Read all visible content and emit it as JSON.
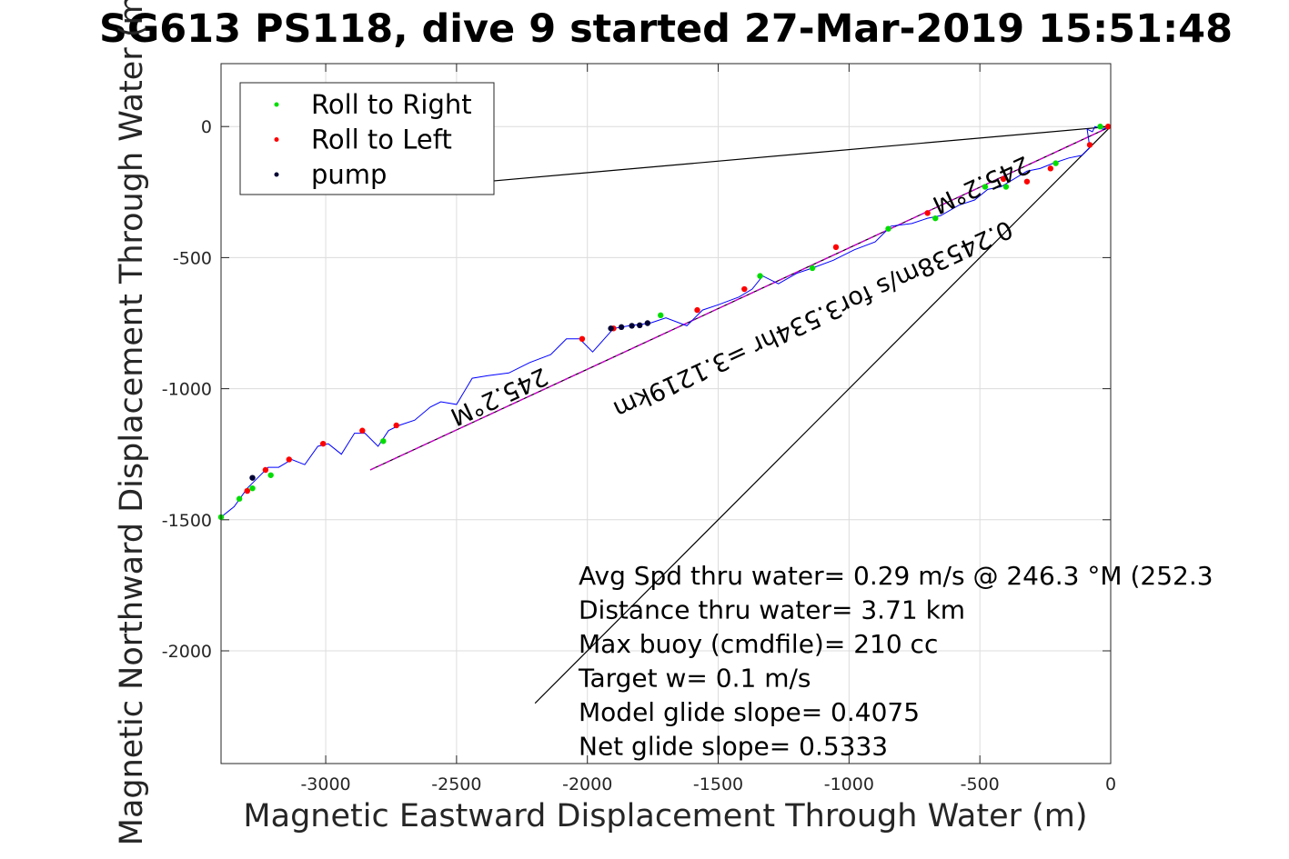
{
  "title": "SG613 PS118, dive 9 started 27-Mar-2019 15:51:48",
  "chart_data": {
    "type": "scatter",
    "xlabel": "Magnetic Eastward Displacement Through Water (m)",
    "ylabel": "Magnetic Northward Displacement Through Water (m)",
    "xlim": [
      -3400,
      0
    ],
    "ylim": [
      -2430,
      240
    ],
    "xticks": [
      -3000,
      -2500,
      -2000,
      -1500,
      -1000,
      -500,
      0
    ],
    "yticks": [
      0,
      -500,
      -1000,
      -1500,
      -2000
    ],
    "grid": true,
    "legend_position": "top-left",
    "series": [
      {
        "name": "Roll to Right",
        "color": "#00dd00",
        "marker": "dot",
        "x": [
          -3400,
          -3330,
          -3280,
          -3210,
          -2780,
          -1720,
          -1340,
          -1140,
          -850,
          -670,
          -480,
          -400,
          -210,
          -40
        ],
        "y": [
          -1490,
          -1420,
          -1380,
          -1330,
          -1200,
          -720,
          -570,
          -540,
          -390,
          -350,
          -230,
          -230,
          -140,
          0
        ]
      },
      {
        "name": "Roll to Left",
        "color": "#ff0000",
        "marker": "dot",
        "x": [
          -3300,
          -3230,
          -3140,
          -3010,
          -2860,
          -2730,
          -2020,
          -1900,
          -1580,
          -1400,
          -1050,
          -700,
          -410,
          -320,
          -230,
          -80,
          -10
        ],
        "y": [
          -1390,
          -1310,
          -1270,
          -1210,
          -1160,
          -1140,
          -810,
          -770,
          -700,
          -620,
          -460,
          -330,
          -200,
          -210,
          -160,
          -70,
          0
        ]
      },
      {
        "name": "pump",
        "color": "#000033",
        "marker": "dot",
        "x": [
          -3280,
          -1910,
          -1870,
          -1830,
          -1800,
          -1770
        ],
        "y": [
          -1340,
          -770,
          -765,
          -760,
          -758,
          -750
        ]
      }
    ],
    "track": {
      "color": "#0000ff",
      "x": [
        -3400,
        -3350,
        -3300,
        -3260,
        -3220,
        -3180,
        -3130,
        -3080,
        -3030,
        -2990,
        -2940,
        -2890,
        -2850,
        -2800,
        -2760,
        -2720,
        -2660,
        -2600,
        -2560,
        -2500,
        -2440,
        -2380,
        -2300,
        -2220,
        -2140,
        -2080,
        -2030,
        -1980,
        -1900,
        -1840,
        -1760,
        -1700,
        -1620,
        -1560,
        -1500,
        -1420,
        -1370,
        -1330,
        -1270,
        -1200,
        -1140,
        -1060,
        -980,
        -900,
        -840,
        -760,
        -700,
        -650,
        -580,
        -520,
        -470,
        -420,
        -370,
        -320,
        -270,
        -220,
        -160,
        -110,
        -80,
        -90,
        -70,
        -60,
        -30,
        0
      ],
      "y": [
        -1490,
        -1450,
        -1380,
        -1340,
        -1300,
        -1300,
        -1270,
        -1290,
        -1220,
        -1210,
        -1250,
        -1170,
        -1170,
        -1220,
        -1160,
        -1140,
        -1120,
        -1070,
        -1050,
        -1060,
        -960,
        -950,
        -940,
        -900,
        -870,
        -810,
        -810,
        -860,
        -770,
        -760,
        -750,
        -730,
        -760,
        -700,
        -680,
        -650,
        -620,
        -570,
        -600,
        -560,
        -540,
        -510,
        -470,
        -440,
        -380,
        -370,
        -350,
        -340,
        -300,
        -280,
        -240,
        -230,
        -200,
        -170,
        -160,
        -140,
        -120,
        -110,
        -80,
        -10,
        -20,
        0,
        -10,
        0
      ]
    },
    "annotations": {
      "heading_text_1": "245.2°M",
      "heading_text_2": "245.2°M",
      "current_text": "0.24538m/s for3.534hr =3.1219km",
      "stats": [
        "Avg Spd thru water=  0.29 m/s @ 246.3 °M (252.3",
        "Distance thru water=  3.71 km",
        "Max buoy (cmdfile)= 210 cc",
        "Target w= 0.1 m/s",
        "Model glide slope= 0.4075",
        "Net glide slope= 0.5333"
      ]
    },
    "lines": {
      "upper_black_end": [
        -2900,
        -255
      ],
      "track_direction_end": [
        -2830,
        -1310
      ],
      "lower_black_end": [
        -2200,
        -2200
      ]
    }
  }
}
